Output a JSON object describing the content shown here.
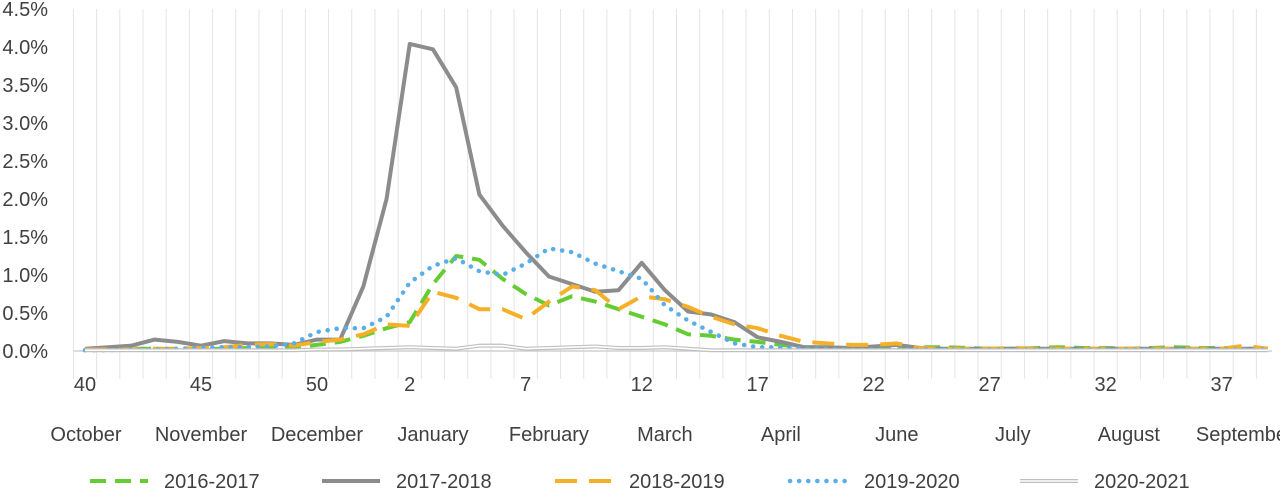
{
  "chart_data": {
    "type": "line",
    "title": "",
    "xlabel": "",
    "ylabel": "",
    "ylim": [
      0,
      4.5
    ],
    "y_ticks": [
      "0.0%",
      "0.5%",
      "1.0%",
      "1.5%",
      "2.0%",
      "2.5%",
      "3.0%",
      "3.5%",
      "4.0%",
      "4.5%"
    ],
    "x_weeks": [
      40,
      41,
      42,
      43,
      44,
      45,
      46,
      47,
      48,
      49,
      50,
      51,
      52,
      1,
      2,
      3,
      4,
      5,
      6,
      7,
      8,
      9,
      10,
      11,
      12,
      13,
      14,
      15,
      16,
      17,
      18,
      19,
      20,
      21,
      22,
      23,
      24,
      25,
      26,
      27,
      28,
      29,
      30,
      31,
      32,
      33,
      34,
      35,
      36,
      37,
      38,
      39
    ],
    "x_tick_labels": [
      {
        "week_index": 0,
        "label": "40"
      },
      {
        "week_index": 5,
        "label": "45"
      },
      {
        "week_index": 10,
        "label": "50"
      },
      {
        "week_index": 14,
        "label": "2"
      },
      {
        "week_index": 19,
        "label": "7"
      },
      {
        "week_index": 24,
        "label": "12"
      },
      {
        "week_index": 29,
        "label": "17"
      },
      {
        "week_index": 34,
        "label": "22"
      },
      {
        "week_index": 39,
        "label": "27"
      },
      {
        "week_index": 44,
        "label": "32"
      },
      {
        "week_index": 49,
        "label": "37"
      }
    ],
    "month_labels": [
      {
        "week_index": 0,
        "label": "October"
      },
      {
        "week_index": 5,
        "label": "November"
      },
      {
        "week_index": 10,
        "label": "December"
      },
      {
        "week_index": 15,
        "label": "January"
      },
      {
        "week_index": 20,
        "label": "February"
      },
      {
        "week_index": 25,
        "label": "March"
      },
      {
        "week_index": 30,
        "label": "April"
      },
      {
        "week_index": 35,
        "label": "June"
      },
      {
        "week_index": 40,
        "label": "July"
      },
      {
        "week_index": 45,
        "label": "August"
      },
      {
        "week_index": 50,
        "label": "September"
      }
    ],
    "grid": "vertical",
    "legend_position": "bottom",
    "series": [
      {
        "name": "2016-2017",
        "color": "#66cc33",
        "dash": "dashed",
        "values": [
          0.02,
          0.03,
          0.03,
          0.03,
          0.02,
          0.02,
          0.03,
          0.04,
          0.05,
          0.05,
          0.08,
          0.12,
          0.2,
          0.3,
          0.38,
          0.88,
          1.25,
          1.2,
          0.95,
          0.75,
          0.6,
          0.72,
          0.65,
          0.55,
          0.45,
          0.35,
          0.22,
          0.2,
          0.15,
          0.12,
          0.08,
          0.05,
          0.05,
          0.03,
          0.03,
          0.03,
          0.05,
          0.05,
          0.04,
          0.03,
          0.03,
          0.04,
          0.05,
          0.04,
          0.04,
          0.03,
          0.04,
          0.05,
          0.04,
          0.04,
          0.03,
          0.03
        ]
      },
      {
        "name": "2017-2018",
        "color": "#8c8c8c",
        "dash": "solid",
        "values": [
          0.03,
          0.05,
          0.07,
          0.15,
          0.12,
          0.07,
          0.13,
          0.1,
          0.1,
          0.08,
          0.15,
          0.15,
          0.85,
          2.0,
          4.04,
          3.97,
          3.47,
          2.06,
          1.65,
          1.3,
          0.98,
          0.88,
          0.78,
          0.8,
          1.16,
          0.8,
          0.52,
          0.48,
          0.38,
          0.18,
          0.12,
          0.05,
          0.05,
          0.04,
          0.06,
          0.08,
          0.04,
          0.03,
          0.03,
          0.03,
          0.03,
          0.03,
          0.03,
          0.03,
          0.03,
          0.03,
          0.03,
          0.03,
          0.03,
          0.03,
          0.03,
          0.03
        ]
      },
      {
        "name": "2018-2019",
        "color": "#f5b028",
        "dash": "longdash",
        "values": [
          0.02,
          0.02,
          0.02,
          0.03,
          0.03,
          0.04,
          0.05,
          0.08,
          0.09,
          0.07,
          0.12,
          0.15,
          0.22,
          0.35,
          0.33,
          0.78,
          0.7,
          0.55,
          0.55,
          0.42,
          0.65,
          0.85,
          0.8,
          0.55,
          0.72,
          0.68,
          0.58,
          0.45,
          0.35,
          0.3,
          0.2,
          0.12,
          0.1,
          0.08,
          0.08,
          0.1,
          0.04,
          0.03,
          0.03,
          0.03,
          0.04,
          0.03,
          0.03,
          0.03,
          0.03,
          0.03,
          0.03,
          0.03,
          0.03,
          0.03,
          0.07,
          0.03
        ]
      },
      {
        "name": "2019-2020",
        "color": "#5aaee8",
        "dash": "dotted",
        "values": [
          0.01,
          0.01,
          0.02,
          0.02,
          0.03,
          0.04,
          0.05,
          0.05,
          0.06,
          0.1,
          0.25,
          0.3,
          0.3,
          0.45,
          0.9,
          1.12,
          1.22,
          1.05,
          1.0,
          1.15,
          1.35,
          1.3,
          1.15,
          1.05,
          0.95,
          0.6,
          0.4,
          0.25,
          0.1,
          0.05,
          0.05,
          0.03,
          0.03,
          0.02,
          0.02,
          0.02,
          0.02,
          0.02,
          0.02,
          0.02,
          0.02,
          0.02,
          0.02,
          0.02,
          0.02,
          0.02,
          0.02,
          0.02,
          0.02,
          0.02,
          0.02,
          0.02
        ]
      },
      {
        "name": "2020-2021",
        "color": "#bfbfbf",
        "dash": "double",
        "values": [
          0.01,
          0.01,
          0.01,
          0.01,
          0.01,
          0.01,
          0.01,
          0.01,
          0.01,
          0.01,
          0.02,
          0.02,
          0.03,
          0.04,
          0.05,
          0.04,
          0.03,
          0.07,
          0.07,
          0.03,
          0.04,
          0.05,
          0.06,
          0.04,
          0.04,
          0.05,
          0.03,
          0.01,
          0.01,
          0.01,
          0.01,
          0.01,
          0.01,
          0.01,
          0.01,
          0.01,
          0.01,
          0.01,
          0.01,
          0.01,
          0.01,
          0.01,
          0.01,
          0.01,
          0.01,
          0.01,
          0.01,
          0.01,
          0.01,
          0.01,
          0.01,
          0.01
        ]
      }
    ]
  }
}
